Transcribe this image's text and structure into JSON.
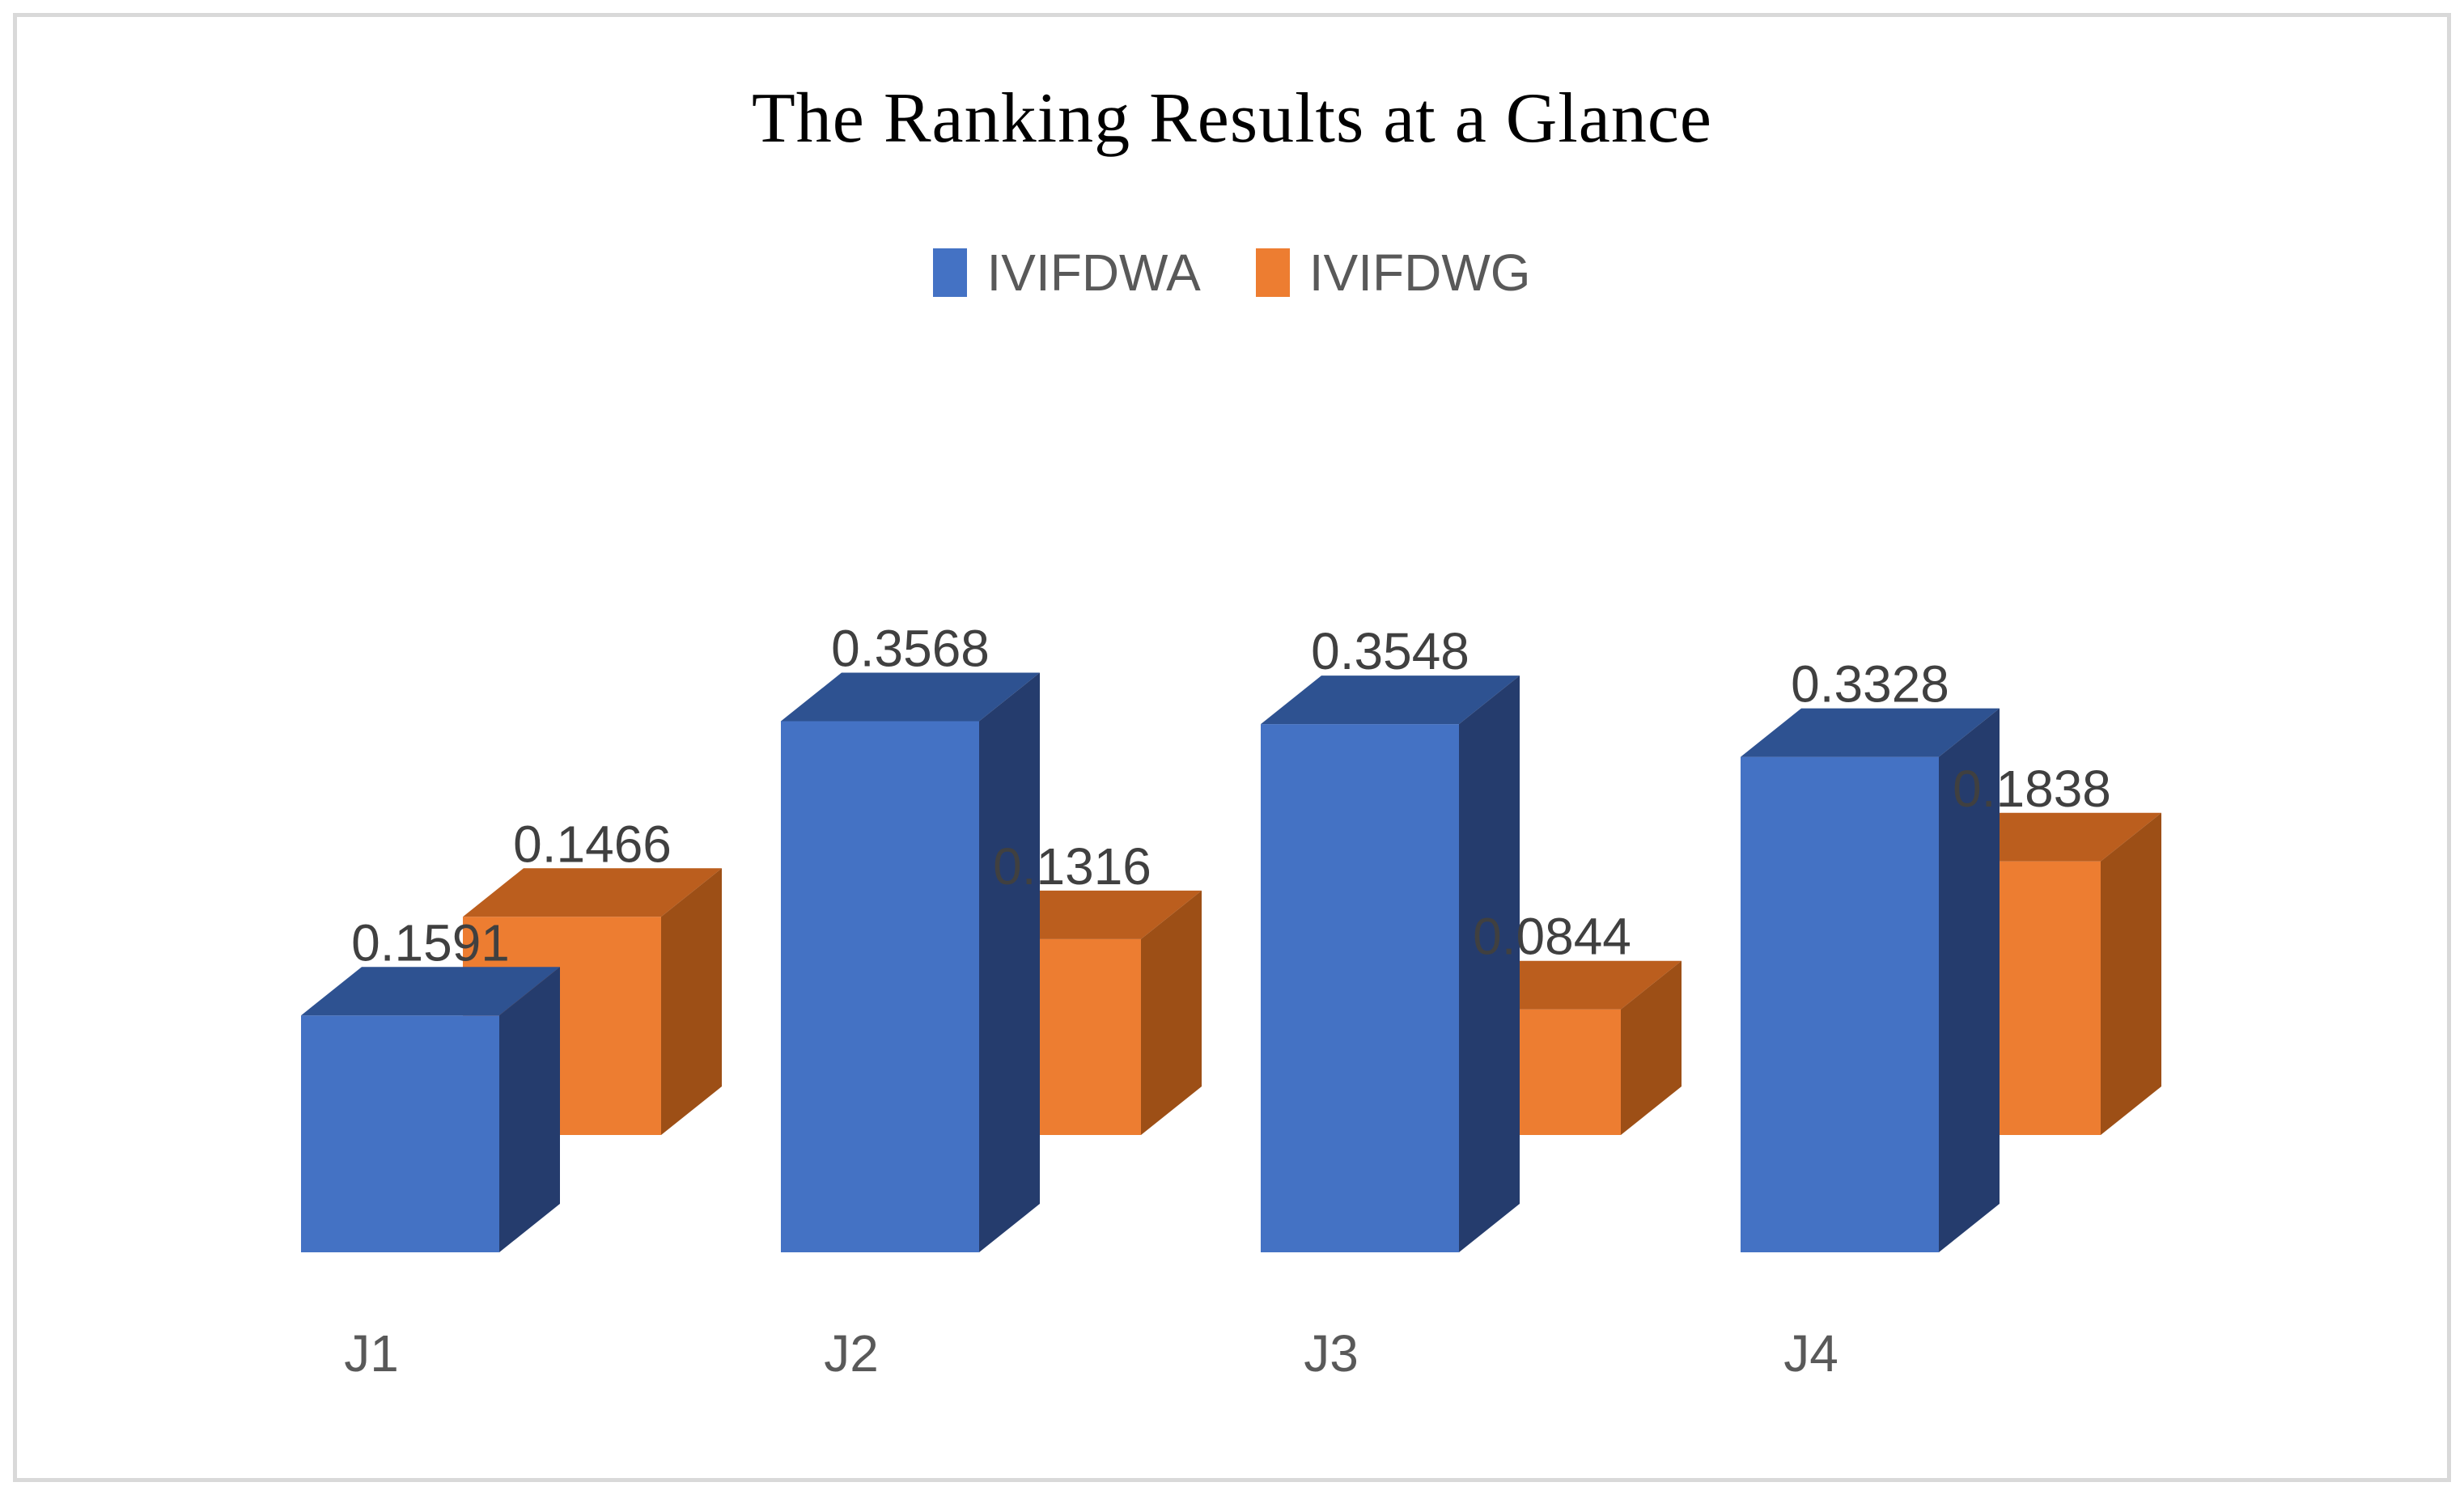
{
  "chart_data": {
    "type": "bar",
    "variant": "3d-clustered-column",
    "title": "The Ranking Results at a Glance",
    "categories": [
      "J1",
      "J2",
      "J3",
      "J4"
    ],
    "series": [
      {
        "name": "IVIFDWA",
        "values": [
          0.1591,
          0.3568,
          0.3548,
          0.3328
        ],
        "labels": [
          "0.1591",
          "0.3568",
          "0.3548",
          "0.3328"
        ],
        "color": "#4472C4",
        "color_top": "#2E5291",
        "color_side": "#253C6D"
      },
      {
        "name": "IVIFDWG",
        "values": [
          0.1466,
          0.1316,
          0.0844,
          0.1838
        ],
        "labels": [
          "0.1466",
          "0.1316",
          "0.0844",
          "0.1838"
        ],
        "color": "#ED7D31",
        "color_top": "#BB5E1E",
        "color_side": "#9D4F16"
      }
    ],
    "legend_position": "top",
    "gridlines": false,
    "value_axis_visible": false,
    "data_label_color": "#404040",
    "category_label_color": "#595959",
    "frame_border_color": "#d9d9d9",
    "background_color": "#ffffff"
  }
}
